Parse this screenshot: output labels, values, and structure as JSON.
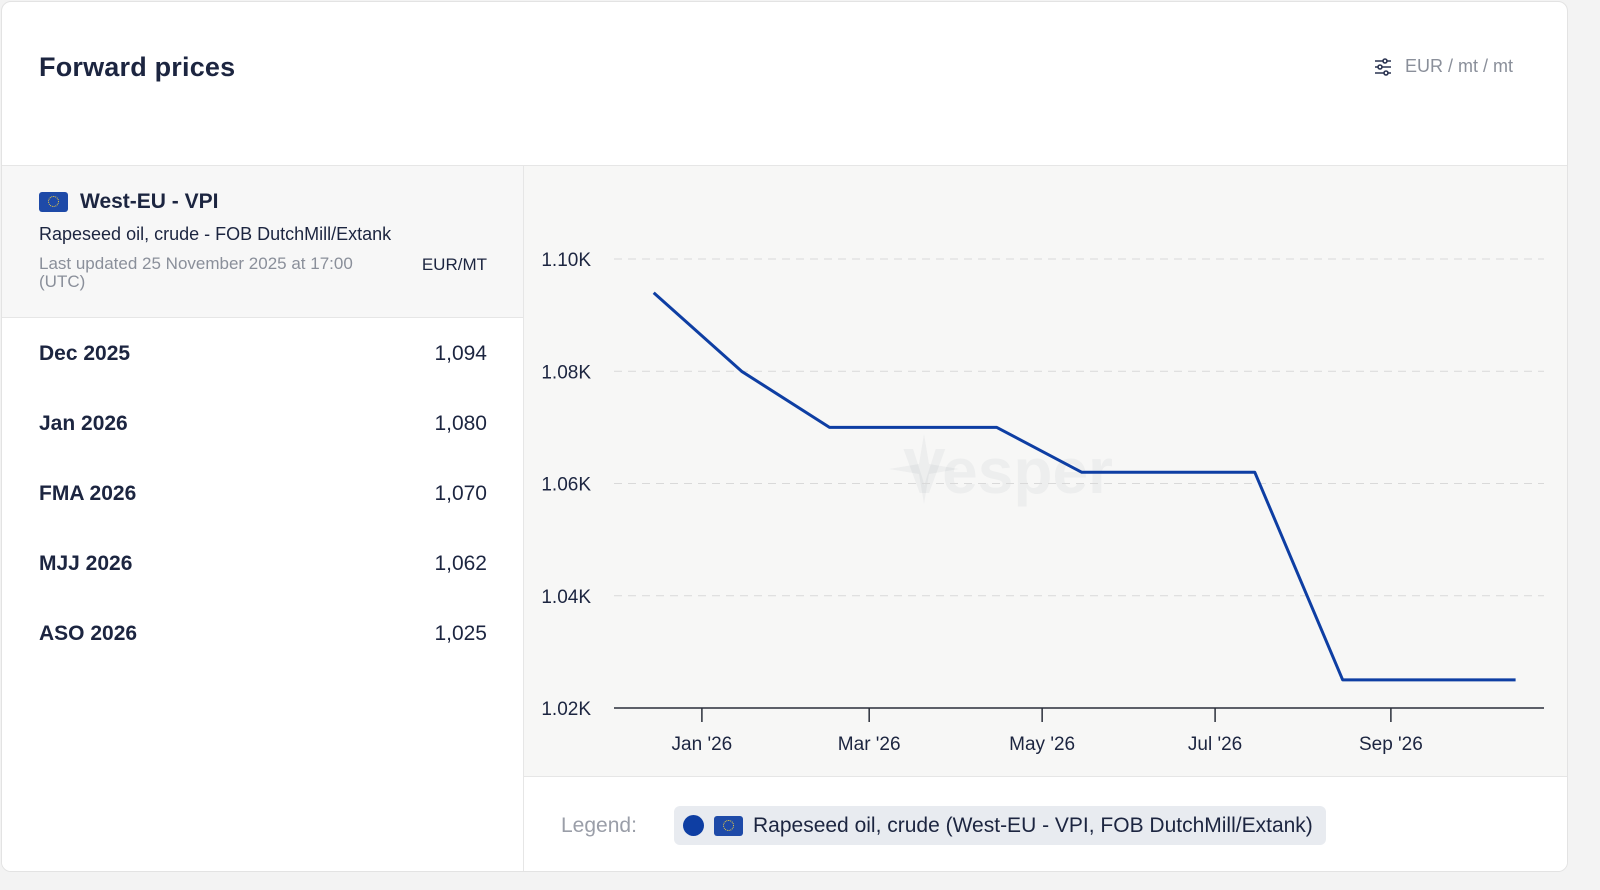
{
  "header": {
    "title": "Forward prices",
    "unit_selector": {
      "icon": "sliders-icon",
      "label": "EUR / mt / mt"
    }
  },
  "series": {
    "flag": "eu-flag-icon",
    "name": "West-EU - VPI",
    "product": "Rapeseed oil, crude - FOB DutchMill/Extank",
    "last_updated": "Last updated 25 November 2025 at 17:00 (UTC)",
    "unit": "EUR/MT",
    "color": "#0e3ea3"
  },
  "rows": [
    {
      "period": "Dec 2025",
      "price": "1,094"
    },
    {
      "period": "Jan 2026",
      "price": "1,080"
    },
    {
      "period": "FMA 2026",
      "price": "1,070"
    },
    {
      "period": "MJJ 2026",
      "price": "1,062"
    },
    {
      "period": "ASO 2026",
      "price": "1,025"
    }
  ],
  "watermark": {
    "text": "Vesper",
    "icon": "vesper-star-icon"
  },
  "legend": {
    "label": "Legend:",
    "item": "Rapeseed oil, crude (West-EU - VPI, FOB DutchMill/Extank)"
  },
  "chart_data": {
    "type": "line",
    "title": "",
    "xlabel": "",
    "ylabel": "",
    "x": [
      "2025-12-15",
      "2026-01-15",
      "2026-02-15",
      "2026-03-15",
      "2026-04-15",
      "2026-05-15",
      "2026-06-15",
      "2026-07-15",
      "2026-08-15",
      "2026-09-15",
      "2026-10-15"
    ],
    "series": [
      {
        "values": [
          1094,
          1080,
          1070,
          1070,
          1070,
          1062,
          1062,
          1062,
          1025,
          1025,
          1025
        ]
      }
    ],
    "ylim": [
      1020,
      1100
    ],
    "yticks": [
      1020,
      1040,
      1060,
      1080,
      1100
    ],
    "ytick_labels": [
      "1.02K",
      "1.04K",
      "1.06K",
      "1.08K",
      "1.10K"
    ],
    "xticks": [
      "2026-01-01",
      "2026-03-01",
      "2026-05-01",
      "2026-07-01",
      "2026-09-01"
    ],
    "xtick_labels": [
      "Jan '26",
      "Mar '26",
      "May '26",
      "Jul '26",
      "Sep '26"
    ],
    "grid": true,
    "grid_style": "dashed",
    "line_color": "#0e3ea3"
  }
}
